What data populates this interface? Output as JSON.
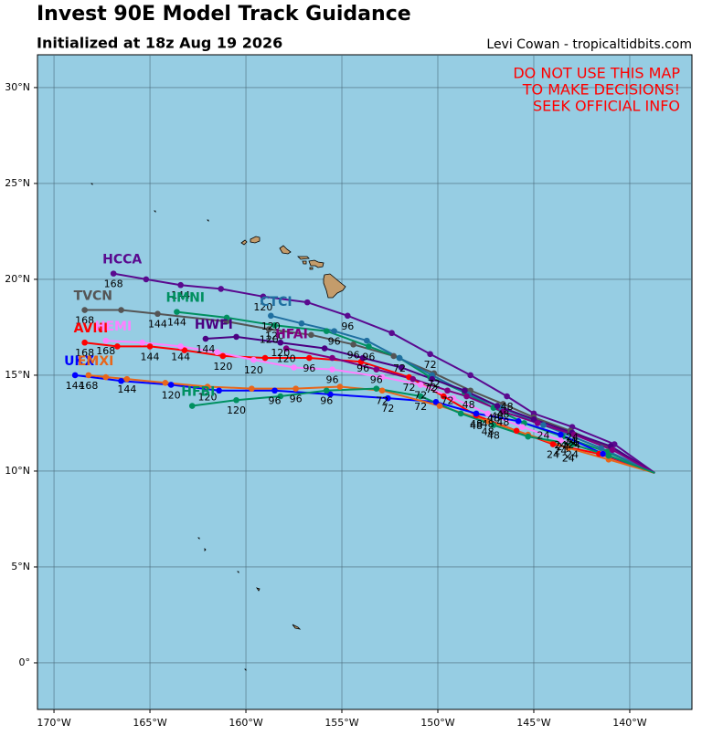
{
  "map": {
    "title": "Invest 90E Model Track Guidance",
    "subtitle": "Initialized at 18z Aug 19 2026",
    "credit": "Levi Cowan - tropicaltidbits.com",
    "warning": [
      "DO NOT USE THIS MAP",
      "TO MAKE DECISIONS!",
      "SEEK OFFICIAL INFO"
    ],
    "xlim": [
      -170.86,
      -136.76
    ],
    "ylim": [
      -2.43,
      31.71
    ],
    "xticks": [
      {
        "value": -170,
        "label": "170°W"
      },
      {
        "value": -165,
        "label": "165°W"
      },
      {
        "value": -160,
        "label": "160°W"
      },
      {
        "value": -155,
        "label": "155°W"
      },
      {
        "value": -150,
        "label": "150°W"
      },
      {
        "value": -145,
        "label": "145°W"
      },
      {
        "value": -140,
        "label": "140°W"
      }
    ],
    "yticks": [
      {
        "value": 0,
        "label": "0°"
      },
      {
        "value": 5,
        "label": "5°N"
      },
      {
        "value": 10,
        "label": "10°N"
      },
      {
        "value": 15,
        "label": "15°N"
      },
      {
        "value": 20,
        "label": "20°N"
      },
      {
        "value": 25,
        "label": "25°N"
      },
      {
        "value": 30,
        "label": "30°N"
      }
    ],
    "grid": true,
    "tracks": [
      {
        "name": "HCCA",
        "color": "#5a0a8f",
        "lon": [
          -138.7,
          -140.8,
          -143.0,
          -145.0,
          -146.4,
          -148.3,
          -150.4,
          -152.4,
          -154.7,
          -156.8,
          -159.1,
          -161.3,
          -163.4,
          -165.2,
          -166.9
        ],
        "lat": [
          9.9,
          11.4,
          12.3,
          13.0,
          13.9,
          15.0,
          16.1,
          17.2,
          18.1,
          18.8,
          19.1,
          19.5,
          19.7,
          20.0,
          20.3
        ],
        "labels": [
          null,
          null,
          "24",
          null,
          "48",
          null,
          "72",
          null,
          "96",
          null,
          "120",
          null,
          "144",
          null,
          "168"
        ]
      },
      {
        "name": "TVCN",
        "color": "#555555",
        "lon": [
          -138.7,
          -141.0,
          -143.1,
          -145.0,
          -146.6,
          -148.3,
          -150.2,
          -152.3,
          -154.4,
          -156.6,
          -158.8,
          -161.0,
          -164.6,
          -166.5,
          -168.4
        ],
        "lat": [
          9.9,
          11.2,
          12.1,
          12.8,
          13.5,
          14.2,
          15.1,
          16.0,
          16.6,
          17.1,
          17.4,
          17.8,
          18.2,
          18.4,
          18.4
        ],
        "labels": [
          null,
          null,
          "24",
          null,
          "48",
          null,
          "72",
          null,
          "96",
          null,
          "120",
          null,
          "144",
          null,
          "168"
        ]
      },
      {
        "name": "HMNI",
        "color": "#009060",
        "lon": [
          -138.7,
          -141.2,
          -143.5,
          -145.5,
          -147.1,
          -148.6,
          -150.4,
          -152.0,
          -153.6,
          -155.8,
          -158.5,
          -161.0,
          -163.6
        ],
        "lat": [
          9.9,
          11.0,
          11.8,
          12.5,
          13.3,
          14.1,
          14.9,
          15.9,
          16.5,
          17.3,
          17.6,
          18.0,
          18.3
        ],
        "labels": [
          null,
          null,
          "24",
          null,
          "48",
          null,
          "72",
          null,
          "96",
          null,
          "120",
          null,
          "144"
        ]
      },
      {
        "name": "CTCI",
        "color": "#1f6fa0",
        "lon": [
          -138.7,
          -141.5,
          -144.5,
          -146.7,
          -148.4,
          -150.3,
          -152.0,
          -153.7,
          -155.4,
          -157.1,
          -158.7
        ],
        "lat": [
          9.9,
          11.2,
          12.4,
          13.3,
          14.0,
          15.0,
          15.9,
          16.8,
          17.3,
          17.7,
          18.1
        ],
        "labels": [
          null,
          null,
          "24",
          null,
          "48",
          null,
          "72",
          null,
          "96",
          null,
          "120"
        ]
      },
      {
        "name": "AVNI",
        "color": "#ff0000",
        "lon": [
          -138.7,
          -141.6,
          -144.0,
          -145.9,
          -148.0,
          -149.7,
          -151.5,
          -154.0,
          -156.7,
          -159.0,
          -161.2,
          -163.2,
          -165.0,
          -166.7,
          -168.4
        ],
        "lat": [
          9.9,
          10.9,
          11.4,
          12.1,
          12.9,
          13.9,
          14.9,
          15.7,
          15.9,
          15.9,
          16.0,
          16.3,
          16.5,
          16.5,
          16.7
        ],
        "labels": [
          null,
          null,
          "24",
          null,
          "48",
          null,
          "72",
          null,
          "96",
          null,
          "120",
          null,
          "144",
          null,
          "168"
        ]
      },
      {
        "name": "HEMI",
        "color": "#ff80ff",
        "lon": [
          -138.7,
          -141.4,
          -143.6,
          -145.6,
          -147.4,
          -149.2,
          -150.9,
          -152.9,
          -155.5,
          -157.5,
          -159.6,
          -161.5,
          -163.4,
          -165.4,
          -167.3
        ],
        "lat": [
          9.9,
          10.9,
          11.6,
          12.3,
          13.0,
          13.8,
          14.5,
          14.9,
          15.3,
          15.4,
          15.8,
          16.2,
          16.5,
          16.7,
          16.8
        ],
        "labels": [
          null,
          null,
          "24",
          null,
          "48",
          null,
          "72",
          null,
          "96",
          null,
          "120",
          null,
          "144",
          null,
          "168"
        ]
      },
      {
        "name": "HWFI",
        "color": "#4b0082",
        "lon": [
          -138.7,
          -141.0,
          -143.0,
          -145.0,
          -146.9,
          -148.6,
          -150.3,
          -151.9,
          -153.9,
          -155.9,
          -158.2,
          -160.5,
          -162.1
        ],
        "lat": [
          9.9,
          11.3,
          12.0,
          12.7,
          13.4,
          14.2,
          14.8,
          15.4,
          15.9,
          16.4,
          16.7,
          17.0,
          16.9
        ],
        "labels": [
          null,
          null,
          "24",
          null,
          "48",
          null,
          "72",
          null,
          "96",
          null,
          "120",
          null,
          "144"
        ]
      },
      {
        "name": "HFAI",
        "color": "#800080",
        "lon": [
          -138.7,
          -140.9,
          -142.9,
          -144.8,
          -146.6,
          -148.5,
          -149.5,
          -151.3,
          -153.2,
          -155.5,
          -157.9
        ],
        "lat": [
          9.9,
          11.1,
          11.9,
          12.5,
          13.1,
          13.9,
          14.2,
          14.8,
          15.3,
          15.9,
          16.4
        ],
        "labels": [
          null,
          null,
          "24",
          null,
          "48",
          null,
          "72",
          null,
          "96",
          null,
          "120"
        ]
      },
      {
        "name": "UKXI",
        "color": "#0000ff",
        "lon": [
          -138.7,
          -141.4,
          -143.6,
          -145.8,
          -148.0,
          -150.1,
          -152.6,
          -155.6,
          -158.5,
          -161.4,
          -163.9,
          -166.5,
          -168.9
        ],
        "lat": [
          9.9,
          10.9,
          11.9,
          12.6,
          13.0,
          13.6,
          13.8,
          14.0,
          14.2,
          14.2,
          14.5,
          14.7,
          15.0
        ],
        "labels": [
          null,
          null,
          "24",
          null,
          "48",
          null,
          "72",
          null,
          "96",
          null,
          "120",
          null,
          "144"
        ]
      },
      {
        "name": "EMXI",
        "color": "#e8661a",
        "lon": [
          -138.7,
          -141.1,
          -143.2,
          -145.3,
          -147.4,
          -149.9,
          -152.9,
          -155.1,
          -157.4,
          -159.7,
          -162.0,
          -164.2,
          -166.2,
          -167.3,
          -168.2
        ],
        "lat": [
          9.9,
          10.6,
          11.2,
          11.9,
          12.6,
          13.4,
          14.2,
          14.4,
          14.3,
          14.3,
          14.4,
          14.6,
          14.8,
          14.9,
          15.0
        ],
        "labels": [
          null,
          null,
          "24",
          null,
          "48",
          null,
          "72",
          null,
          "96",
          null,
          "120",
          null,
          "144",
          null,
          "168"
        ]
      },
      {
        "name": "HFBI",
        "color": "#009060",
        "lon": [
          -138.7,
          -141.1,
          -143.0,
          -145.3,
          -147.1,
          -148.8,
          -150.9,
          -153.2,
          -155.8,
          -158.2,
          -160.5,
          -162.8
        ],
        "lat": [
          9.9,
          10.8,
          11.4,
          11.8,
          12.4,
          13.0,
          13.9,
          14.3,
          14.2,
          13.9,
          13.7,
          13.4
        ],
        "labels": [
          null,
          null,
          "24",
          null,
          "48",
          null,
          "72",
          null,
          "96",
          null,
          "120",
          null
        ]
      }
    ]
  }
}
